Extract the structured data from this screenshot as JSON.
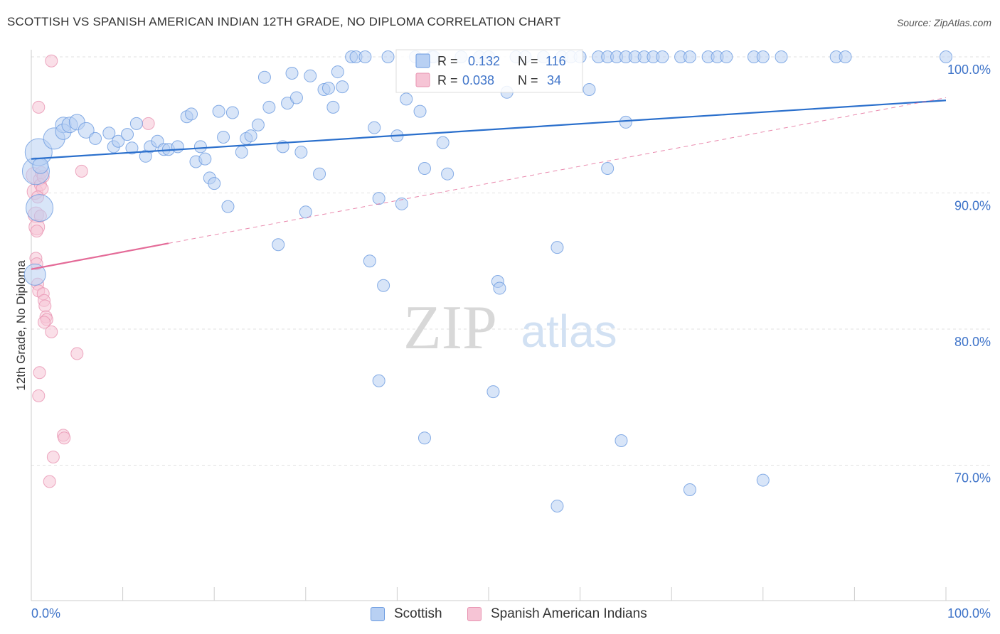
{
  "title": "SCOTTISH VS SPANISH AMERICAN INDIAN 12TH GRADE, NO DIPLOMA CORRELATION CHART",
  "source": "Source: ZipAtlas.com",
  "watermark": {
    "zip": "ZIP",
    "atlas": "atlas"
  },
  "stats": [
    {
      "r_label": "R =",
      "r": "0.132",
      "n_label": "N =",
      "n": "116"
    },
    {
      "r_label": "R =",
      "r": "0.038",
      "n_label": "N =",
      "n": "34"
    }
  ],
  "colors": {
    "scottish": "#6a9ae0",
    "scottish_fill": "#b8d0f3",
    "scottish_line": "#2a6fcc",
    "spanish": "#e893b1",
    "spanish_fill": "#f6c4d5",
    "spanish_line": "#e46b98",
    "tick_label": "#3f74c9"
  },
  "chart_data": {
    "type": "scatter",
    "title": "SCOTTISH VS SPANISH AMERICAN INDIAN 12TH GRADE, NO DIPLOMA CORRELATION CHART",
    "xlabel": "",
    "ylabel": "12th Grade, No Diploma",
    "xlim": [
      0,
      100
    ],
    "ylim": [
      59,
      100.5
    ],
    "x_tick_labels": [
      "0.0%",
      "100.0%"
    ],
    "y_ticks": [
      100,
      90,
      80,
      70
    ],
    "y_tick_labels": [
      "100.0%",
      "90.0%",
      "80.0%",
      "70.0%"
    ],
    "grid": true,
    "legend_position": "bottom",
    "series": [
      {
        "name": "Scottish",
        "R": 0.132,
        "N": 116,
        "trend": {
          "x": [
            0,
            100
          ],
          "y": [
            92.5,
            96.8
          ],
          "style": "solid"
        },
        "points": [
          [
            0.5,
            91.6,
            4
          ],
          [
            0.8,
            93.0,
            4
          ],
          [
            0.9,
            88.9,
            4
          ],
          [
            0.4,
            84.0,
            3
          ],
          [
            2.5,
            94.0,
            3
          ],
          [
            3.5,
            95.0,
            2
          ],
          [
            1.0,
            92.0,
            2
          ],
          [
            3.5,
            94.5,
            2
          ],
          [
            4.2,
            95.0,
            2
          ],
          [
            5.0,
            95.2,
            2
          ],
          [
            6.0,
            94.6,
            2
          ],
          [
            7.0,
            94.0,
            1
          ],
          [
            8.5,
            94.4,
            1
          ],
          [
            9.0,
            93.4,
            1
          ],
          [
            9.5,
            93.8,
            1
          ],
          [
            10.5,
            94.3,
            1
          ],
          [
            11.0,
            93.3,
            1
          ],
          [
            11.5,
            95.1,
            1
          ],
          [
            12.5,
            92.7,
            1
          ],
          [
            13.0,
            93.4,
            1
          ],
          [
            13.8,
            93.8,
            1
          ],
          [
            14.5,
            93.2,
            1
          ],
          [
            15.0,
            93.2,
            1
          ],
          [
            16.0,
            93.4,
            1
          ],
          [
            17.0,
            95.6,
            1
          ],
          [
            17.5,
            95.8,
            1
          ],
          [
            18.0,
            92.3,
            1
          ],
          [
            18.5,
            93.4,
            1
          ],
          [
            19.0,
            92.5,
            1
          ],
          [
            19.5,
            91.1,
            1
          ],
          [
            20.0,
            90.7,
            1
          ],
          [
            20.5,
            96.0,
            1
          ],
          [
            21.0,
            94.1,
            1
          ],
          [
            21.5,
            89.0,
            1
          ],
          [
            22.0,
            95.9,
            1
          ],
          [
            23.0,
            93.0,
            1
          ],
          [
            23.5,
            94.0,
            1
          ],
          [
            24.0,
            94.2,
            1
          ],
          [
            24.8,
            95.0,
            1
          ],
          [
            25.5,
            98.5,
            1
          ],
          [
            26.0,
            96.3,
            1
          ],
          [
            27.0,
            86.2,
            1
          ],
          [
            27.5,
            93.4,
            1
          ],
          [
            28.0,
            96.6,
            1
          ],
          [
            28.5,
            98.8,
            1
          ],
          [
            29.0,
            97.0,
            1
          ],
          [
            29.5,
            93.0,
            1
          ],
          [
            30.0,
            88.6,
            1
          ],
          [
            30.5,
            98.6,
            1
          ],
          [
            31.5,
            91.4,
            1
          ],
          [
            32.0,
            97.6,
            1
          ],
          [
            32.5,
            97.7,
            1
          ],
          [
            33.0,
            96.3,
            1
          ],
          [
            33.5,
            98.9,
            1
          ],
          [
            34.0,
            97.8,
            1
          ],
          [
            35.0,
            100.0,
            1
          ],
          [
            35.5,
            100.0,
            1
          ],
          [
            36.5,
            100.0,
            1
          ],
          [
            37.0,
            85.0,
            1
          ],
          [
            37.5,
            94.8,
            1
          ],
          [
            38.0,
            89.6,
            1
          ],
          [
            38.5,
            83.2,
            1
          ],
          [
            39.0,
            100.0,
            1
          ],
          [
            40.0,
            94.2,
            1
          ],
          [
            40.5,
            89.2,
            1
          ],
          [
            41.0,
            96.9,
            1
          ],
          [
            42.0,
            100.0,
            1
          ],
          [
            42.5,
            96.0,
            1
          ],
          [
            43.0,
            91.8,
            1
          ],
          [
            43.8,
            100.0,
            1
          ],
          [
            44.0,
            100.0,
            1
          ],
          [
            45.0,
            93.7,
            1
          ],
          [
            45.5,
            91.4,
            1
          ],
          [
            47.0,
            100.0,
            1
          ],
          [
            49.0,
            100.0,
            1
          ],
          [
            50.0,
            100.0,
            1
          ],
          [
            51.0,
            83.5,
            1
          ],
          [
            51.2,
            83.0,
            1
          ],
          [
            52.0,
            97.4,
            1
          ],
          [
            53.0,
            100.0,
            1
          ],
          [
            54.0,
            100.0,
            1
          ],
          [
            56.0,
            100.0,
            1
          ],
          [
            58.0,
            100.0,
            1
          ],
          [
            59.0,
            100.0,
            1
          ],
          [
            60.0,
            100.0,
            1
          ],
          [
            61.0,
            97.6,
            1
          ],
          [
            62.0,
            100.0,
            1
          ],
          [
            63.0,
            100.0,
            1
          ],
          [
            64.0,
            100.0,
            1
          ],
          [
            65.0,
            100.0,
            1
          ],
          [
            66.0,
            100.0,
            1
          ],
          [
            67.0,
            100.0,
            1
          ],
          [
            68.0,
            100.0,
            1
          ],
          [
            69.0,
            100.0,
            1
          ],
          [
            71.0,
            100.0,
            1
          ],
          [
            72.0,
            100.0,
            1
          ],
          [
            74.0,
            100.0,
            1
          ],
          [
            75.0,
            100.0,
            1
          ],
          [
            76.0,
            100.0,
            1
          ],
          [
            79.0,
            100.0,
            1
          ],
          [
            80.0,
            100.0,
            1
          ],
          [
            82.0,
            100.0,
            1
          ],
          [
            88.0,
            100.0,
            1
          ],
          [
            89.0,
            100.0,
            1
          ],
          [
            100.0,
            100.0,
            1
          ],
          [
            50.5,
            75.4,
            1
          ],
          [
            57.5,
            67.0,
            1
          ],
          [
            57.5,
            86.0,
            1
          ],
          [
            64.5,
            71.8,
            1
          ],
          [
            65.0,
            95.2,
            1
          ],
          [
            63.0,
            91.8,
            1
          ],
          [
            72.0,
            68.2,
            1
          ],
          [
            80.0,
            68.9,
            1
          ],
          [
            38.0,
            76.2,
            1
          ],
          [
            43.0,
            72.0,
            1
          ]
        ]
      },
      {
        "name": "Spanish American Indians",
        "R": 0.038,
        "N": 34,
        "trend": {
          "x": [
            0,
            15,
            100
          ],
          "y": [
            84.4,
            86.3,
            97.0
          ],
          "style": "solid-then-dashed"
        },
        "points": [
          [
            0.3,
            91.3,
            2
          ],
          [
            0.4,
            90.1,
            2
          ],
          [
            0.5,
            88.4,
            2
          ],
          [
            0.6,
            87.5,
            2
          ],
          [
            0.5,
            85.2,
            1
          ],
          [
            0.6,
            84.8,
            1
          ],
          [
            0.7,
            83.3,
            1
          ],
          [
            0.8,
            82.8,
            1
          ],
          [
            0.9,
            91.0,
            1
          ],
          [
            1.0,
            90.6,
            1
          ],
          [
            1.1,
            91.5,
            1
          ],
          [
            1.2,
            90.3,
            1
          ],
          [
            1.3,
            82.6,
            1
          ],
          [
            1.4,
            82.1,
            1
          ],
          [
            1.5,
            81.7,
            1
          ],
          [
            1.6,
            80.9,
            1
          ],
          [
            1.7,
            80.7,
            1
          ],
          [
            1.4,
            80.5,
            1
          ],
          [
            2.2,
            79.8,
            1
          ],
          [
            0.8,
            96.3,
            1
          ],
          [
            2.2,
            99.7,
            1
          ],
          [
            5.5,
            91.6,
            1
          ],
          [
            12.8,
            95.1,
            1
          ],
          [
            5.0,
            78.2,
            1
          ],
          [
            0.9,
            76.8,
            1
          ],
          [
            0.8,
            75.1,
            1
          ],
          [
            3.5,
            72.2,
            1
          ],
          [
            3.6,
            72.0,
            1
          ],
          [
            2.4,
            70.6,
            1
          ],
          [
            2.0,
            68.8,
            1
          ],
          [
            0.6,
            87.2,
            1
          ],
          [
            0.7,
            89.7,
            1
          ],
          [
            1.0,
            88.3,
            1
          ],
          [
            1.3,
            91.2,
            1
          ]
        ]
      }
    ]
  },
  "legend": {
    "scottish": "Scottish",
    "spanish": "Spanish American Indians"
  }
}
